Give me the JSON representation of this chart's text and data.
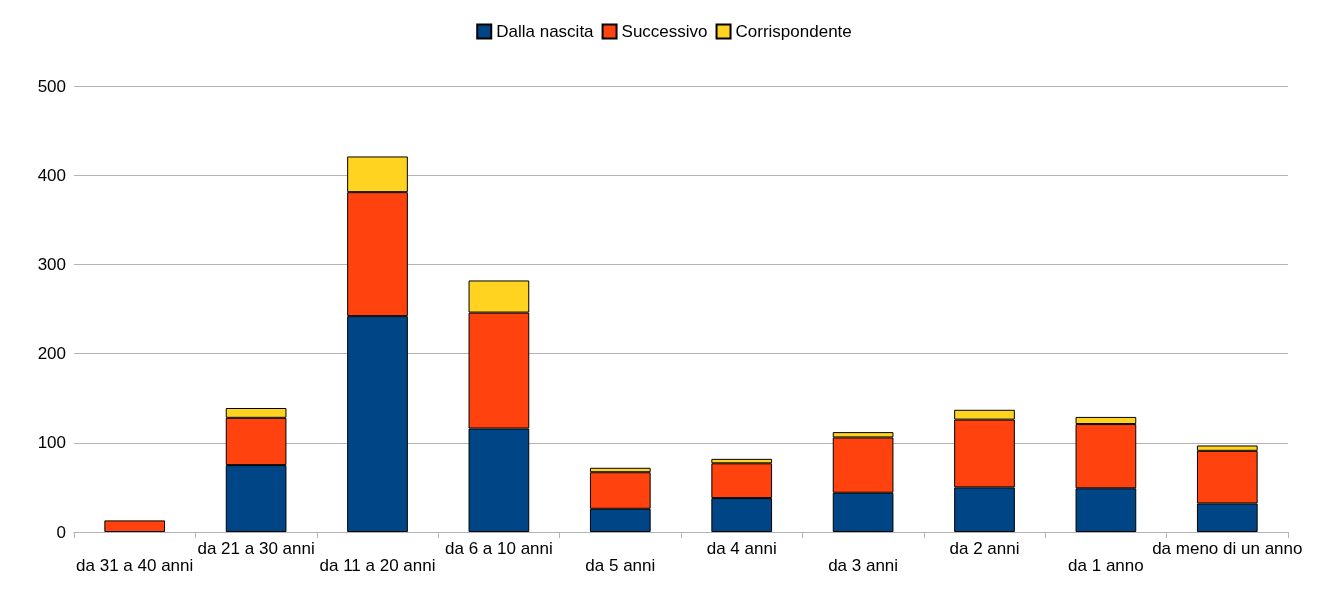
{
  "chart_data": {
    "type": "bar",
    "stacked": true,
    "categories": [
      "da 31 a 40 anni",
      "da 21 a 30 anni",
      "da 11 a 20 anni",
      "da 6 a 10 anni",
      "da 5 anni",
      "da 4 anni",
      "da 3 anni",
      "da 2 anni",
      "da 1 anno",
      "da meno di un anno"
    ],
    "series": [
      {
        "name": "Dalla nascita",
        "color": "#004586",
        "values": [
          0,
          75,
          242,
          116,
          26,
          38,
          44,
          50,
          49,
          32
        ]
      },
      {
        "name": "Successivo",
        "color": "#ff420e",
        "values": [
          13,
          53,
          139,
          130,
          41,
          39,
          62,
          76,
          72,
          59
        ]
      },
      {
        "name": "Corrispondente",
        "color": "#ffd320",
        "values": [
          0,
          11,
          40,
          36,
          5,
          5,
          6,
          11,
          8,
          6
        ]
      }
    ],
    "ylim": [
      0,
      500
    ],
    "yticks": [
      0,
      100,
      200,
      300,
      400,
      500
    ],
    "grid": "y",
    "legend": "top"
  }
}
